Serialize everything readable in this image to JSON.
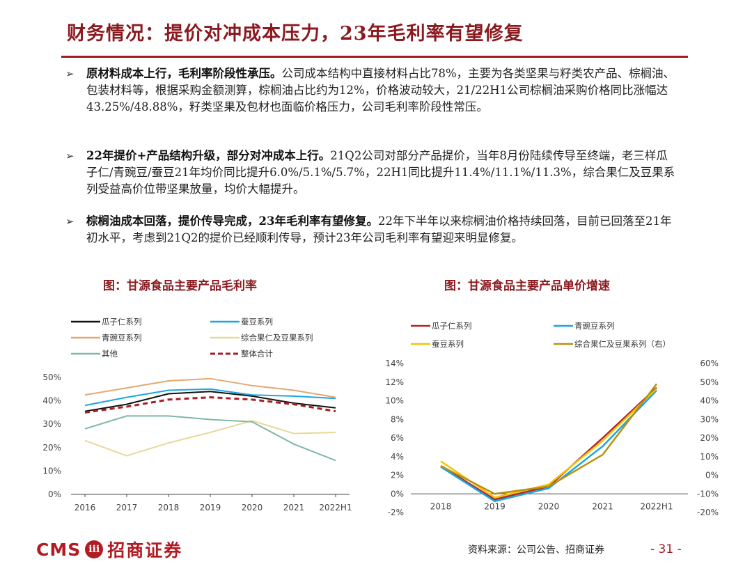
{
  "title": "财务情况：提价对冲成本压力，23年毛利率有望修复",
  "bullets": [
    {
      "bold": "原材料成本上行，毛利率阶段性承压。",
      "text": "公司成本结构中直接材料占比78%，主要为各类坚果与籽类农产品、棕榈油、包装材料等，根据采购金额测算，棕榈油占比约为12%，价格波动较大，21/22H1公司棕榈油采购价格同比涨幅达43.25%/48.88%，籽类坚果及包材也面临价格压力，公司毛利率阶段性常压。"
    },
    {
      "bold": "22年提价+产品结构升级，部分对冲成本上行。",
      "text": "21Q2公司对部分产品提价，当年8月份陆续传导至终端，老三样瓜子仁/青豌豆/蚕豆21年均价同比提升6.0%/5.1%/5.7%，22H1同比提升11.4%/11.1%/11.3%，综合果仁及豆果系列受益高价位带坚果放量，均价大幅提升。"
    },
    {
      "bold": "棕榈油成本回落，提价传导完成，23年毛利率有望修复。",
      "text": "22年下半年以来棕榈油价格持续回落，目前已回落至21年初水平，考虑到21Q2的提价已经顺利传导，预计23年公司毛利率有望迎来明显修复。"
    }
  ],
  "chart_left_title": "图：甘源食品主要产品毛利率",
  "chart_right_title": "图：甘源食品主要产品单价增速",
  "footer_source": "资料来源：公司公告、招商证券",
  "footer_page": "- 31 -",
  "logo_cms": "CMS",
  "logo_badge": "ⅲ",
  "logo_cn": "招商证券",
  "chart_data": [
    {
      "type": "line",
      "title": "图：甘源食品主要产品毛利率",
      "categories": [
        "2016",
        "2017",
        "2018",
        "2019",
        "2020",
        "2021",
        "2022H1"
      ],
      "yticks": [
        "0%",
        "10%",
        "20%",
        "30%",
        "40%",
        "50%"
      ],
      "ylim": [
        0,
        50
      ],
      "series": [
        {
          "name": "瓜子仁系列",
          "color": "#111111",
          "dash": false,
          "values": [
            35.5,
            38.5,
            43,
            44,
            42,
            39,
            37
          ]
        },
        {
          "name": "蚕豆系列",
          "color": "#1aa7e0",
          "dash": false,
          "values": [
            38,
            41.5,
            44.5,
            45,
            42.5,
            42,
            41
          ]
        },
        {
          "name": "青豌豆系列",
          "color": "#e3a870",
          "dash": false,
          "values": [
            42.5,
            45.5,
            48.5,
            49.5,
            46.5,
            44.5,
            41.5
          ]
        },
        {
          "name": "综合果仁及豆果系列",
          "color": "#e6d99a",
          "dash": false,
          "values": [
            23,
            16.5,
            22,
            26.5,
            31.5,
            26,
            26.5
          ]
        },
        {
          "name": "其他",
          "color": "#7fb8a3",
          "dash": false,
          "values": [
            28,
            33.5,
            33.5,
            32,
            31,
            21.5,
            14.5
          ]
        },
        {
          "name": "整体合计",
          "color": "#a81c25",
          "dash": true,
          "values": [
            35,
            37.5,
            40.5,
            41.5,
            40.5,
            38.5,
            35.5
          ]
        }
      ]
    },
    {
      "type": "line",
      "title": "图：甘源食品主要产品单价增速",
      "categories": [
        "2018",
        "2019",
        "2020",
        "2021",
        "2022H1"
      ],
      "yticks_left": [
        "-2%",
        "0%",
        "2%",
        "4%",
        "6%",
        "8%",
        "10%",
        "12%",
        "14%"
      ],
      "yticks_right": [
        "-20%",
        "-10%",
        "0%",
        "10%",
        "20%",
        "30%",
        "40%",
        "50%",
        "60%"
      ],
      "ylim_left": [
        -2,
        14
      ],
      "ylim_right": [
        -20,
        60
      ],
      "series": [
        {
          "name": "瓜子仁系列",
          "color": "#b0242b",
          "axis": "left",
          "values": [
            3.0,
            -0.6,
            0.8,
            6.0,
            11.4
          ]
        },
        {
          "name": "青豌豆系列",
          "color": "#1aa7e0",
          "axis": "left",
          "values": [
            2.9,
            -0.8,
            0.6,
            5.1,
            11.1
          ]
        },
        {
          "name": "蚕豆系列",
          "color": "#f2c400",
          "axis": "left",
          "values": [
            3.5,
            -0.4,
            1.0,
            5.7,
            11.3
          ]
        },
        {
          "name": "综合果仁及豆果系列（右）",
          "color": "#b8900f",
          "axis": "right",
          "values": [
            5,
            -10,
            -6,
            11,
            49
          ]
        }
      ]
    }
  ]
}
